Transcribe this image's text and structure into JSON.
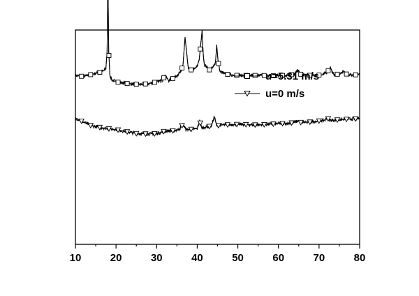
{
  "chart_data": {
    "type": "line",
    "title": "",
    "xlabel": "",
    "ylabel": "",
    "xlim": [
      10,
      80
    ],
    "xticks": [
      10,
      20,
      30,
      40,
      50,
      60,
      70,
      80
    ],
    "ylim": [
      0,
      100
    ],
    "yticks_shown": false,
    "grid": false,
    "legend_position": "top-right",
    "series": [
      {
        "name": "u=5.31 m/s",
        "marker": "square",
        "color": "#000000",
        "x": [
          10,
          12,
          14,
          15,
          16,
          17,
          17.5,
          17.8,
          18.0,
          18.2,
          18.5,
          19,
          20,
          22,
          24,
          26,
          28,
          30,
          31.5,
          32,
          33,
          34,
          35,
          36,
          36.5,
          37.0,
          37.4,
          37.8,
          38.5,
          39.3,
          40,
          40.5,
          41.2,
          41.5,
          41.8,
          42.3,
          43,
          43.8,
          44.5,
          44.8,
          45.1,
          45.6,
          47,
          50,
          55,
          60,
          64,
          64.8,
          65.3,
          68,
          71,
          72.3,
          72.8,
          73.4,
          74,
          75.5,
          76,
          77,
          80
        ],
        "y": [
          78.8,
          78.3,
          79.3,
          79.8,
          80.3,
          81.0,
          82.0,
          90.0,
          125.8,
          90.0,
          78.8,
          76.7,
          75.8,
          75.2,
          74.8,
          74.6,
          75.0,
          75.8,
          76.6,
          78.8,
          76.4,
          77.4,
          78.8,
          80.6,
          84.0,
          96.5,
          89.0,
          82.0,
          81.4,
          81.8,
          83.0,
          86.5,
          99.5,
          88.0,
          83.6,
          82.9,
          81.4,
          82.3,
          85.0,
          93.2,
          86.0,
          80.6,
          79.4,
          78.8,
          78.8,
          78.6,
          79.3,
          81.4,
          79.4,
          78.8,
          79.1,
          81.1,
          82.6,
          79.6,
          79.1,
          79.9,
          80.5,
          79.1,
          79.1
        ]
      },
      {
        "name": "u=0 m/s",
        "marker": "triangle-down",
        "color": "#000000",
        "x": [
          10,
          12,
          14,
          16,
          18,
          20,
          22,
          25,
          28,
          30,
          32,
          34,
          35.5,
          36.5,
          37.2,
          38,
          40,
          40.6,
          41.1,
          42,
          43.5,
          44.2,
          44.8,
          46,
          50,
          55,
          60,
          63,
          64,
          64.8,
          65.5,
          68,
          70,
          71.5,
          72,
          72.6,
          74,
          76,
          80
        ],
        "y": [
          59.0,
          57.0,
          55.3,
          54.6,
          54.0,
          53.6,
          52.8,
          51.7,
          51.5,
          51.7,
          52.8,
          53.0,
          53.6,
          56.0,
          53.6,
          53.6,
          54.0,
          57.6,
          54.3,
          54.6,
          55.3,
          59.6,
          55.3,
          55.7,
          56.0,
          55.7,
          56.3,
          56.6,
          56.9,
          57.6,
          56.9,
          57.1,
          57.6,
          58.0,
          59.2,
          57.9,
          58.0,
          58.3,
          58.7
        ]
      }
    ],
    "legend": {
      "entries": [
        "u=5.31 m/s",
        "u=0 m/s"
      ]
    }
  }
}
